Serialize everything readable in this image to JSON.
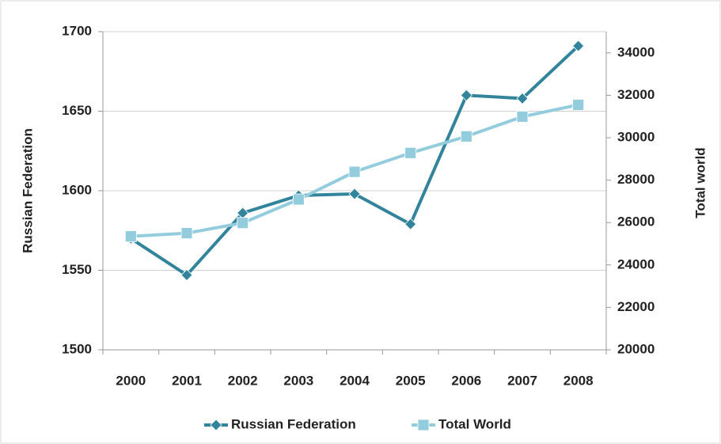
{
  "chart_data": {
    "type": "line",
    "categories": [
      "2000",
      "2001",
      "2002",
      "2003",
      "2004",
      "2005",
      "2006",
      "2007",
      "2008"
    ],
    "series": [
      {
        "name": "Russian Federation",
        "color": "#31849b",
        "marker": "diamond",
        "values": [
          1570,
          1547,
          1586,
          1597,
          1598,
          1579,
          1660,
          1658,
          1691
        ]
      },
      {
        "name": "Total World",
        "color": "#93cddd",
        "marker": "square",
        "axis": "y2",
        "values": [
          25350,
          25500,
          25980,
          27090,
          28390,
          29280,
          30060,
          30990,
          31550
        ]
      }
    ],
    "ylabel": "Russian Federation",
    "y2label": "Total world",
    "ylim": [
      1500,
      1700
    ],
    "yticks": [
      1500,
      1550,
      1600,
      1650,
      1700
    ],
    "y2lim": [
      20000,
      35000
    ],
    "y2ticks": [
      20000,
      22000,
      24000,
      26000,
      28000,
      30000,
      32000,
      34000
    ],
    "grid": true,
    "legend": "bottom"
  }
}
